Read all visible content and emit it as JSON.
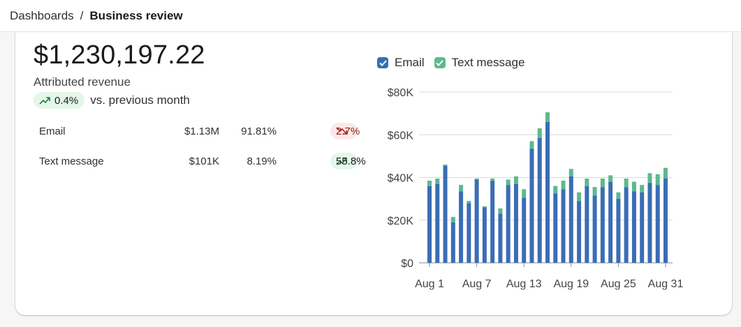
{
  "breadcrumb": {
    "parent": "Dashboards",
    "separator": "/",
    "current": "Business review"
  },
  "summary": {
    "total_value": "$1,230,197.22",
    "metric_label": "Attributed revenue",
    "delta": "0.4%",
    "delta_direction": "up",
    "comparison": "vs. previous month"
  },
  "channels": [
    {
      "name": "Email",
      "amount": "$1.13M",
      "share": "91.81%",
      "change": "2.7%",
      "direction": "down"
    },
    {
      "name": "Text message",
      "amount": "$101K",
      "share": "8.19%",
      "change": "55.8%",
      "direction": "up"
    }
  ],
  "legend": {
    "email": {
      "label": "Email",
      "color": "#3a6db5",
      "checked": true
    },
    "sms": {
      "label": "Text message",
      "color": "#5cb98f",
      "checked": true
    }
  },
  "chart_data": {
    "type": "bar",
    "stacked": true,
    "x_tick_labels": [
      "Aug 1",
      "Aug 7",
      "Aug 13",
      "Aug 19",
      "Aug 25",
      "Aug 31"
    ],
    "y_tick_labels": [
      "$0",
      "$20K",
      "$40K",
      "$60K",
      "$80K"
    ],
    "ylim": [
      0,
      80000
    ],
    "grid": true,
    "categories": [
      "Aug 1",
      "Aug 2",
      "Aug 3",
      "Aug 4",
      "Aug 5",
      "Aug 6",
      "Aug 7",
      "Aug 8",
      "Aug 9",
      "Aug 10",
      "Aug 11",
      "Aug 12",
      "Aug 13",
      "Aug 14",
      "Aug 15",
      "Aug 16",
      "Aug 17",
      "Aug 18",
      "Aug 19",
      "Aug 20",
      "Aug 21",
      "Aug 22",
      "Aug 23",
      "Aug 24",
      "Aug 25",
      "Aug 26",
      "Aug 27",
      "Aug 28",
      "Aug 29",
      "Aug 30",
      "Aug 31"
    ],
    "series": [
      {
        "name": "Email",
        "color": "#3a6db5",
        "values": [
          36000,
          37000,
          45500,
          19000,
          33500,
          28000,
          39000,
          26000,
          38500,
          23000,
          36500,
          37000,
          30500,
          53500,
          58500,
          66000,
          32500,
          34500,
          40500,
          29000,
          36000,
          31500,
          35500,
          38000,
          30000,
          35500,
          33500,
          33000,
          37500,
          36500,
          39500
        ]
      },
      {
        "name": "Text message",
        "color": "#5cb98f",
        "values": [
          2500,
          2500,
          500,
          2500,
          3000,
          1000,
          500,
          500,
          1000,
          2500,
          2500,
          3500,
          4000,
          3500,
          4500,
          4500,
          3500,
          4000,
          3500,
          4000,
          3500,
          4000,
          4000,
          3000,
          3000,
          4000,
          4500,
          3500,
          4500,
          5000,
          5000
        ]
      }
    ]
  }
}
